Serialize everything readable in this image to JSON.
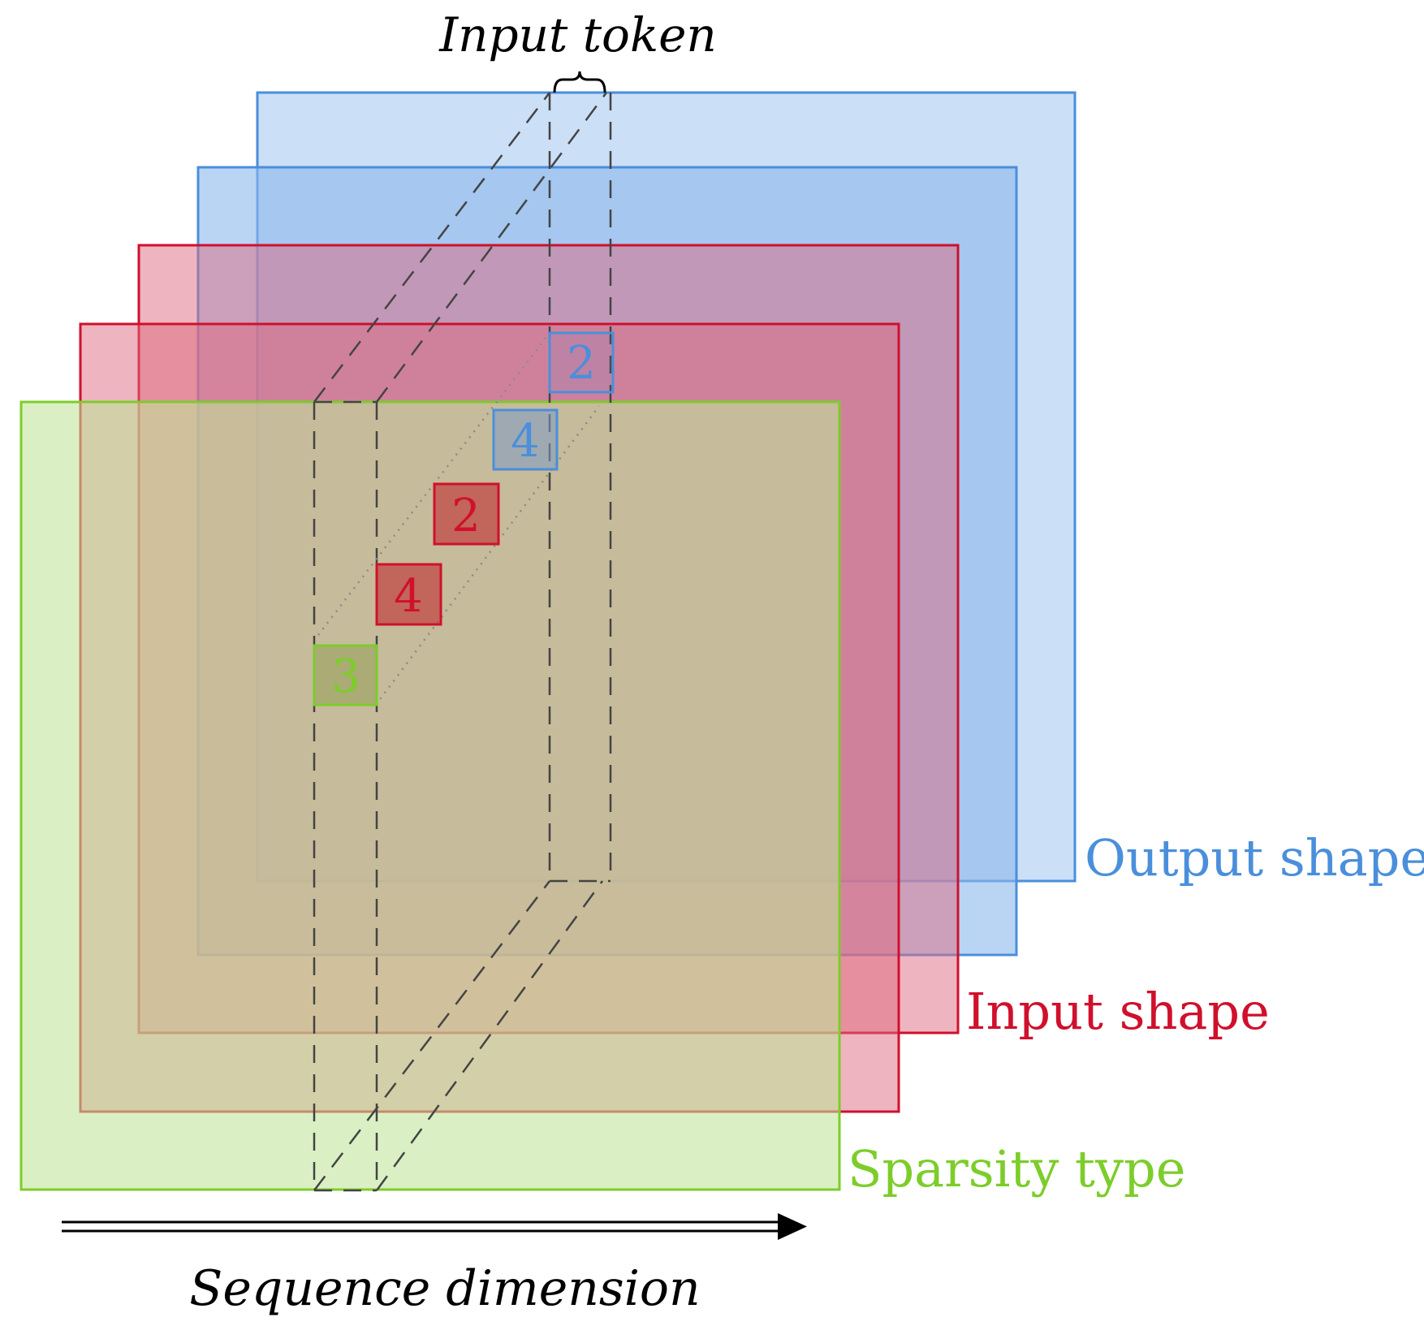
{
  "labels": {
    "input_token": "Input token",
    "output_shape": "Output shape",
    "input_shape": "Input shape",
    "sparsity_type": "Sparsity type",
    "sequence_dimension": "Sequence dimension"
  },
  "cells": {
    "output_back": "2",
    "output_front": "4",
    "input_back": "2",
    "input_front": "4",
    "sparsity": "3"
  },
  "colors": {
    "output": "#4a8fdb",
    "input": "#d0102c",
    "sparsity": "#7ccd2a",
    "dashed": "#444444",
    "arrow": "#000000"
  }
}
